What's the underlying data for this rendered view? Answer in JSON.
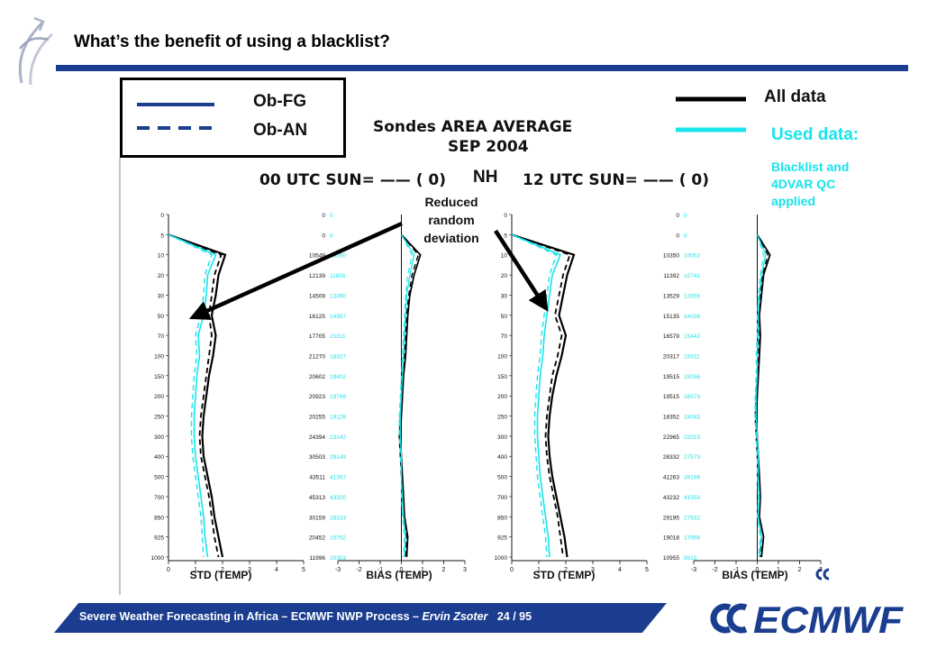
{
  "slide": {
    "title": "What’s the benefit of using a blacklist?",
    "footer": {
      "text": "Severe Weather Forecasting in Africa – ECMWF NWP Process – ",
      "author": "Ervin Zsoter",
      "page": "24 / 95"
    },
    "logo_text": "ECMWF"
  },
  "legend": {
    "obfg_label": "Ob-FG",
    "oban_label": "Ob-AN",
    "all_label": "All data",
    "used_label": "Used data:",
    "used_note": "Blacklist and 4DVAR QC applied"
  },
  "colors": {
    "title_rule": "#1a3d8f",
    "legend_line": "#1a3d8f",
    "all_data": "#000000",
    "used_data": "#18e4ec"
  },
  "chart_data": {
    "type": "line",
    "title": "Sondes AREA AVERAGE",
    "subtitle": "SEP 2004",
    "region": "NH",
    "annotation": "Reduced\nrandom\ndeviation",
    "levels": [
      "0",
      "5",
      "10",
      "20",
      "30",
      "50",
      "70",
      "100",
      "150",
      "200",
      "250",
      "300",
      "400",
      "500",
      "700",
      "850",
      "925",
      "1000"
    ],
    "panels": [
      {
        "header": "00 UTC SUN= —— ( 0)",
        "counts_all": [
          "0",
          "0",
          "10549",
          "12139",
          "14509",
          "16125",
          "17705",
          "21270",
          "20602",
          "20923",
          "20255",
          "24394",
          "30503",
          "43511",
          "45313",
          "30159",
          "20452",
          "11996"
        ],
        "counts_used": [
          "0",
          "0",
          "10280",
          "11805",
          "13390",
          "14357",
          "15311",
          "18327",
          "19402",
          "19769",
          "19129",
          "23142",
          "29149",
          "41357",
          "43320",
          "28333",
          "15752",
          "10353"
        ],
        "std": {
          "xlabel": "STD (TEMP)",
          "xticks": [
            "0",
            "1",
            "2",
            "3",
            "4",
            "5"
          ],
          "xlim": [
            0,
            5
          ],
          "series": [
            {
              "values": [
                null,
                0,
                2.1,
                1.85,
                1.75,
                1.6,
                1.75,
                1.65,
                1.5,
                1.4,
                1.3,
                1.25,
                1.3,
                1.45,
                1.6,
                1.7,
                1.85,
                2.0
              ]
            },
            {
              "values": [
                null,
                0,
                1.95,
                1.7,
                1.6,
                1.5,
                1.6,
                1.5,
                1.4,
                1.3,
                1.2,
                1.15,
                1.2,
                1.35,
                1.5,
                1.6,
                1.7,
                1.85
              ]
            },
            {
              "values": [
                null,
                0,
                1.75,
                1.45,
                1.4,
                1.3,
                1.1,
                1.15,
                1.05,
                1.0,
                0.95,
                0.95,
                1.0,
                1.1,
                1.2,
                1.3,
                1.35,
                1.45
              ]
            },
            {
              "values": [
                null,
                0,
                1.6,
                1.35,
                1.3,
                1.2,
                1.0,
                1.05,
                0.95,
                0.9,
                0.85,
                0.85,
                0.9,
                1.0,
                1.1,
                1.2,
                1.25,
                1.3
              ]
            }
          ]
        },
        "bias": {
          "xlabel": "BIAS (TEMP)",
          "xticks": [
            "-3",
            "-2",
            "-1",
            "0",
            "1",
            "2",
            "3"
          ],
          "xlim": [
            -3,
            3
          ],
          "series": [
            {
              "values": [
                null,
                0,
                0.9,
                0.6,
                0.4,
                0.3,
                0.25,
                0.2,
                0.1,
                0.05,
                0,
                -0.05,
                0,
                0.05,
                0.1,
                0.15,
                0.3,
                0.25
              ]
            },
            {
              "values": [
                null,
                0,
                0.8,
                0.5,
                0.35,
                0.25,
                0.2,
                0.15,
                0.05,
                0,
                -0.05,
                -0.1,
                -0.05,
                0,
                0.05,
                0.1,
                0.25,
                0.2
              ]
            },
            {
              "values": [
                null,
                0,
                0.6,
                0.4,
                0.25,
                0.2,
                0.15,
                0.1,
                0.05,
                0,
                -0.05,
                -0.05,
                0,
                0,
                0.05,
                0.1,
                0.2,
                0.15
              ]
            },
            {
              "values": [
                null,
                0,
                0.5,
                0.3,
                0.2,
                0.15,
                0.1,
                0.05,
                0,
                -0.05,
                -0.1,
                -0.1,
                -0.05,
                0,
                0,
                0.05,
                0.15,
                0.1
              ]
            }
          ]
        }
      },
      {
        "header": "12 UTC SUN= —— ( 0)",
        "counts_all": [
          "0",
          "0",
          "10350",
          "11392",
          "13529",
          "15135",
          "16579",
          "20317",
          "19515",
          "19515",
          "18352",
          "22965",
          "28332",
          "41263",
          "43232",
          "29195",
          "19018",
          "10955"
        ],
        "counts_used": [
          "0",
          "0",
          "10052",
          "10741",
          "12655",
          "14036",
          "15442",
          "15911",
          "19256",
          "18573",
          "18043",
          "22015",
          "27573",
          "39199",
          "41550",
          "27532",
          "17956",
          "9515"
        ],
        "std": {
          "xlabel": "STD (TEMP)",
          "xticks": [
            "0",
            "1",
            "2",
            "3",
            "4",
            "5"
          ],
          "xlim": [
            0,
            5
          ],
          "series": [
            {
              "values": [
                null,
                0,
                2.3,
                2.05,
                1.9,
                1.75,
                2.0,
                1.85,
                1.65,
                1.5,
                1.4,
                1.35,
                1.4,
                1.5,
                1.65,
                1.8,
                1.95,
                2.05
              ]
            },
            {
              "values": [
                null,
                0,
                2.15,
                1.9,
                1.75,
                1.6,
                1.85,
                1.7,
                1.5,
                1.4,
                1.3,
                1.25,
                1.3,
                1.4,
                1.55,
                1.7,
                1.8,
                1.9
              ]
            },
            {
              "values": [
                null,
                0,
                1.8,
                1.5,
                1.4,
                1.3,
                1.2,
                1.15,
                1.05,
                1.0,
                0.95,
                0.95,
                1.0,
                1.05,
                1.15,
                1.25,
                1.35,
                1.4
              ]
            },
            {
              "values": [
                null,
                0,
                1.65,
                1.4,
                1.3,
                1.2,
                1.1,
                1.05,
                0.95,
                0.9,
                0.85,
                0.85,
                0.9,
                0.95,
                1.05,
                1.15,
                1.25,
                1.3
              ]
            }
          ]
        },
        "bias": {
          "xlabel": "BIAS (TEMP)",
          "xticks": [
            "-3",
            "-2",
            "-1",
            "0",
            "1",
            "2",
            "3"
          ],
          "xlim": [
            -3,
            3
          ],
          "series": [
            {
              "values": [
                null,
                0,
                0.6,
                0.3,
                0.2,
                0.1,
                0.15,
                0.1,
                0.05,
                0,
                -0.05,
                0,
                0.05,
                0.1,
                0.15,
                0.1,
                0.3,
                0.2
              ]
            },
            {
              "values": [
                null,
                0,
                0.5,
                0.25,
                0.15,
                0.05,
                0.1,
                0.05,
                0,
                -0.05,
                -0.1,
                -0.05,
                0,
                0.05,
                0.1,
                0.05,
                0.2,
                0.15
              ]
            },
            {
              "values": [
                null,
                0,
                0.4,
                0.2,
                0.1,
                0.05,
                0.05,
                0,
                0,
                -0.05,
                -0.05,
                0,
                0.05,
                0.05,
                0.1,
                0.05,
                0.2,
                0.1
              ]
            },
            {
              "values": [
                null,
                0,
                0.3,
                0.15,
                0.05,
                0,
                0,
                -0.05,
                -0.05,
                -0.1,
                -0.1,
                -0.05,
                0,
                0,
                0.05,
                0,
                0.15,
                0.05
              ]
            }
          ]
        }
      }
    ]
  }
}
